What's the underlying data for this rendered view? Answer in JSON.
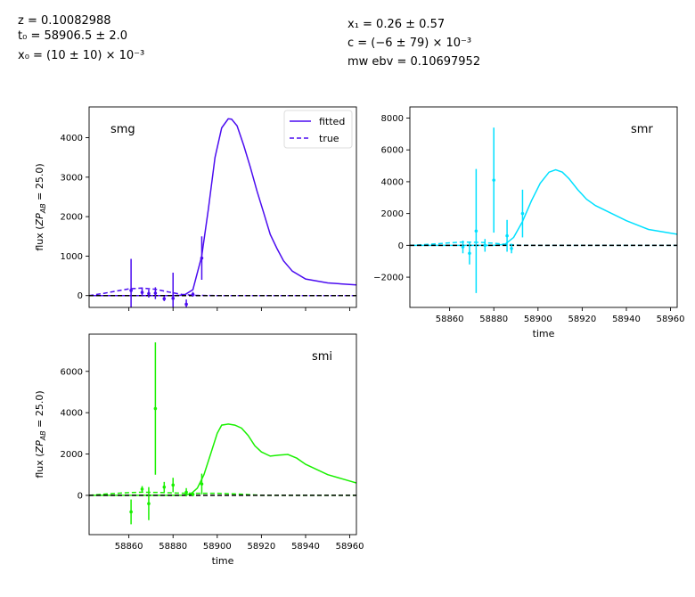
{
  "header": {
    "z": "z = 0.10082988",
    "t0": "t₀ = 58906.5 ± 2.0",
    "x0": "x₀ = (10 ± 10) × 10⁻³",
    "x1": "x₁ = 0.26 ± 0.57",
    "c": "c = (−6 ± 79) × 10⁻³",
    "mwebv": "mw ebv = 0.10697952"
  },
  "legend": {
    "fitted": "fitted",
    "true": "true"
  },
  "colors": {
    "smg": "#4b0cf0",
    "smr": "#00e0ff",
    "smi": "#19f000",
    "zero": "#000000"
  },
  "chart_data": [
    {
      "type": "line",
      "band": "smg",
      "xlabel": "",
      "ylabel": "flux (ZP_AB = 25.0)",
      "xlim": [
        58842,
        58963
      ],
      "ylim": [
        -300,
        4780
      ],
      "xticks": [
        58860,
        58880,
        58900,
        58920,
        58940,
        58960
      ],
      "xtick_labels": [],
      "yticks": [
        0,
        1000,
        2000,
        3000,
        4000
      ],
      "ytick_labels": [
        "0",
        "1000",
        "2000",
        "3000",
        "4000"
      ],
      "fitted": {
        "x": [
          58842,
          58880,
          58885,
          58889,
          58893,
          58896,
          58899,
          58902,
          58905,
          58906.5,
          58909,
          58912,
          58915,
          58918,
          58921,
          58924,
          58927,
          58930,
          58934,
          58940,
          58950,
          58963
        ],
        "y": [
          0,
          0,
          10,
          150,
          1000,
          2200,
          3500,
          4250,
          4480,
          4470,
          4300,
          3800,
          3250,
          2650,
          2100,
          1550,
          1200,
          880,
          620,
          420,
          320,
          270
        ]
      },
      "true": {
        "x": [
          58842,
          58848,
          58854,
          58860,
          58866,
          58872,
          58878,
          58884,
          58890,
          58900,
          58920,
          58963
        ],
        "y": [
          0,
          50,
          110,
          170,
          190,
          160,
          90,
          30,
          5,
          0,
          0,
          0
        ]
      },
      "points": {
        "x": [
          58861,
          58866,
          58869,
          58872,
          58876,
          58880,
          58886,
          58889,
          58893
        ],
        "y": [
          130,
          80,
          50,
          60,
          -80,
          -70,
          -220,
          30,
          950
        ],
        "err": [
          800,
          100,
          100,
          150,
          60,
          650,
          120,
          60,
          550
        ]
      }
    },
    {
      "type": "line",
      "band": "smr",
      "xlabel": "time",
      "ylabel": "",
      "xlim": [
        58842,
        58963
      ],
      "ylim": [
        -3900,
        8700
      ],
      "xticks": [
        58860,
        58880,
        58900,
        58920,
        58940,
        58960
      ],
      "xtick_labels": [
        "58860",
        "58880",
        "58900",
        "58920",
        "58940",
        "58960"
      ],
      "yticks": [
        -2000,
        0,
        2000,
        4000,
        6000,
        8000
      ],
      "ytick_labels": [
        "−2000",
        "0",
        "2000",
        "4000",
        "6000",
        "8000"
      ],
      "fitted": {
        "x": [
          58842,
          58880,
          58885,
          58889,
          58893,
          58897,
          58901,
          58905,
          58908,
          58911,
          58914,
          58918,
          58922,
          58926,
          58932,
          58940,
          58950,
          58963
        ],
        "y": [
          0,
          0,
          60,
          500,
          1500,
          2800,
          3900,
          4600,
          4750,
          4600,
          4200,
          3500,
          2900,
          2500,
          2100,
          1550,
          1000,
          700
        ]
      },
      "true": {
        "x": [
          58842,
          58850,
          58858,
          58866,
          58874,
          58880,
          58886,
          58892,
          58900,
          58963
        ],
        "y": [
          0,
          60,
          140,
          210,
          190,
          130,
          60,
          10,
          0,
          0
        ]
      },
      "points": {
        "x": [
          58866,
          58869,
          58872,
          58876,
          58880,
          58886,
          58888,
          58893
        ],
        "y": [
          -100,
          -500,
          900,
          0,
          4100,
          600,
          -200,
          2000
        ],
        "err": [
          400,
          700,
          3900,
          400,
          3300,
          1000,
          300,
          1500
        ]
      }
    },
    {
      "type": "line",
      "band": "smi",
      "xlabel": "time",
      "ylabel": "flux (ZP_AB = 25.0)",
      "xlim": [
        58842,
        58963
      ],
      "ylim": [
        -1900,
        7800
      ],
      "xticks": [
        58860,
        58880,
        58900,
        58920,
        58940,
        58960
      ],
      "xtick_labels": [
        "58860",
        "58880",
        "58900",
        "58920",
        "58940",
        "58960"
      ],
      "yticks": [
        0,
        2000,
        4000,
        6000
      ],
      "ytick_labels": [
        "0",
        "2000",
        "4000",
        "6000"
      ],
      "fitted": {
        "x": [
          58842,
          58884,
          58888,
          58891,
          58894,
          58897,
          58900,
          58902,
          58905,
          58908,
          58911,
          58914,
          58917,
          58920,
          58924,
          58928,
          58932,
          58936,
          58940,
          58950,
          58963
        ],
        "y": [
          0,
          0,
          60,
          350,
          1000,
          2000,
          3000,
          3400,
          3450,
          3400,
          3250,
          2900,
          2400,
          2100,
          1900,
          1950,
          1980,
          1800,
          1500,
          1000,
          600
        ]
      },
      "true": {
        "x": [
          58842,
          58850,
          58858,
          58866,
          58874,
          58882,
          58892,
          58900,
          58910,
          58920,
          58963
        ],
        "y": [
          0,
          70,
          120,
          150,
          140,
          110,
          100,
          100,
          60,
          0,
          0
        ]
      },
      "points": {
        "x": [
          58861,
          58866,
          58869,
          58872,
          58876,
          58880,
          58886,
          58889,
          58893
        ],
        "y": [
          -800,
          300,
          -400,
          4200,
          400,
          500,
          150,
          50,
          550
        ],
        "err": [
          600,
          150,
          800,
          3200,
          250,
          350,
          200,
          100,
          500
        ]
      }
    }
  ]
}
